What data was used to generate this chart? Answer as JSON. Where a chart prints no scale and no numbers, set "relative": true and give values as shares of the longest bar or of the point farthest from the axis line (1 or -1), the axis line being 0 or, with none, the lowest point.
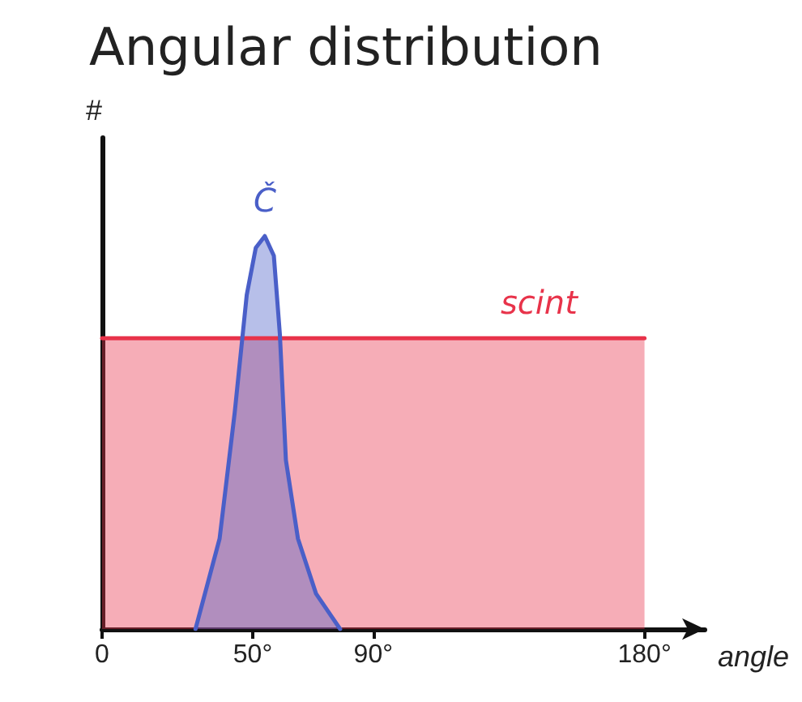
{
  "chart_data": {
    "type": "area",
    "title": "Angular distribution",
    "xlabel": "angle",
    "ylabel": "#",
    "relative": true,
    "xlim": [
      0,
      200
    ],
    "xticks": [
      0,
      {
        "value": 50,
        "label": "50°"
      },
      {
        "value": 90,
        "label": "90°"
      },
      {
        "value": 180,
        "label": "180°"
      }
    ],
    "grid": false,
    "legend": false,
    "marker": "none",
    "series": [
      {
        "name": "scint",
        "color": "#e8334a",
        "x": [
          0,
          145,
          180
        ],
        "values": [
          0.74,
          0.74,
          0.74
        ]
      },
      {
        "name": "Č",
        "color": "#4a5fc8",
        "x": [
          31,
          39,
          44,
          48,
          51,
          54,
          57,
          59,
          61,
          65,
          71,
          79
        ],
        "values": [
          0,
          0.23,
          0.55,
          0.85,
          0.97,
          1,
          0.95,
          0.75,
          0.43,
          0.23,
          0.09,
          0
        ]
      }
    ]
  }
}
